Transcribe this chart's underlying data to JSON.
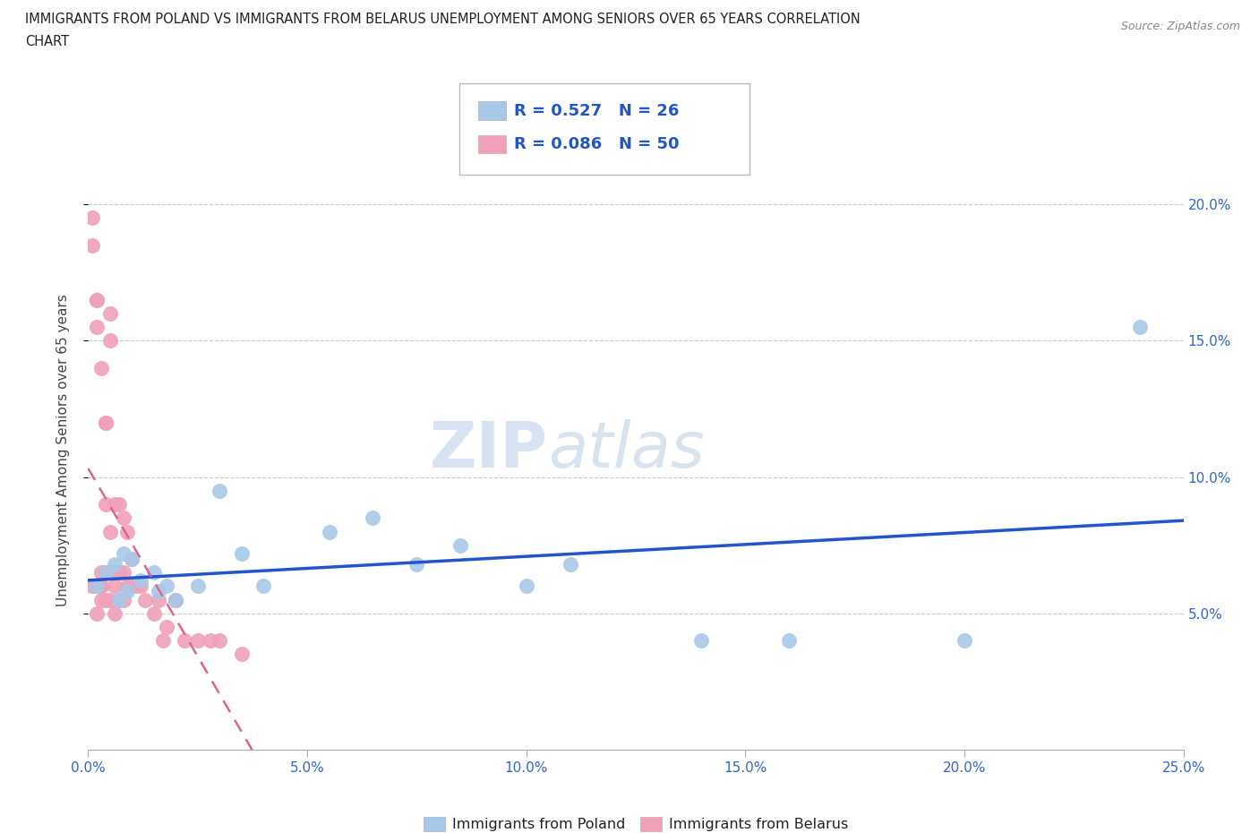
{
  "title_line1": "IMMIGRANTS FROM POLAND VS IMMIGRANTS FROM BELARUS UNEMPLOYMENT AMONG SENIORS OVER 65 YEARS CORRELATION",
  "title_line2": "CHART",
  "source": "Source: ZipAtlas.com",
  "ylabel": "Unemployment Among Seniors over 65 years",
  "xlim": [
    0.0,
    0.25
  ],
  "ylim": [
    0.0,
    0.22
  ],
  "xticks": [
    0.0,
    0.05,
    0.1,
    0.15,
    0.2,
    0.25
  ],
  "yticks": [
    0.05,
    0.1,
    0.15,
    0.2
  ],
  "ytick_labels": [
    "5.0%",
    "10.0%",
    "15.0%",
    "20.0%"
  ],
  "xtick_labels": [
    "0.0%",
    "5.0%",
    "10.0%",
    "15.0%",
    "20.0%",
    "25.0%"
  ],
  "poland_color": "#a8c8e8",
  "belarus_color": "#f0a0b8",
  "poland_line_color": "#2255cc",
  "belarus_line_color": "#dd6688",
  "poland_R": 0.527,
  "poland_N": 26,
  "belarus_R": 0.086,
  "belarus_N": 50,
  "watermark_ZIP": "ZIP",
  "watermark_atlas": "atlas",
  "background_color": "#ffffff",
  "poland_x": [
    0.002,
    0.004,
    0.006,
    0.007,
    0.008,
    0.009,
    0.01,
    0.012,
    0.015,
    0.016,
    0.018,
    0.02,
    0.025,
    0.03,
    0.035,
    0.04,
    0.055,
    0.065,
    0.075,
    0.085,
    0.1,
    0.11,
    0.14,
    0.16,
    0.2,
    0.24
  ],
  "poland_y": [
    0.06,
    0.065,
    0.068,
    0.055,
    0.072,
    0.058,
    0.07,
    0.062,
    0.065,
    0.058,
    0.06,
    0.055,
    0.06,
    0.095,
    0.072,
    0.06,
    0.08,
    0.085,
    0.068,
    0.075,
    0.06,
    0.068,
    0.04,
    0.04,
    0.04,
    0.155
  ],
  "belarus_x": [
    0.001,
    0.001,
    0.001,
    0.002,
    0.002,
    0.002,
    0.002,
    0.002,
    0.003,
    0.003,
    0.003,
    0.003,
    0.003,
    0.004,
    0.004,
    0.004,
    0.004,
    0.004,
    0.005,
    0.005,
    0.005,
    0.005,
    0.005,
    0.006,
    0.006,
    0.006,
    0.006,
    0.007,
    0.007,
    0.007,
    0.008,
    0.008,
    0.008,
    0.009,
    0.009,
    0.01,
    0.01,
    0.011,
    0.012,
    0.013,
    0.015,
    0.016,
    0.017,
    0.018,
    0.02,
    0.022,
    0.025,
    0.028,
    0.03,
    0.035
  ],
  "belarus_y": [
    0.185,
    0.195,
    0.06,
    0.155,
    0.165,
    0.165,
    0.06,
    0.05,
    0.14,
    0.065,
    0.06,
    0.06,
    0.055,
    0.12,
    0.12,
    0.09,
    0.065,
    0.055,
    0.15,
    0.16,
    0.08,
    0.065,
    0.055,
    0.09,
    0.065,
    0.06,
    0.05,
    0.09,
    0.065,
    0.055,
    0.085,
    0.065,
    0.055,
    0.08,
    0.06,
    0.07,
    0.06,
    0.06,
    0.06,
    0.055,
    0.05,
    0.055,
    0.04,
    0.045,
    0.055,
    0.04,
    0.04,
    0.04,
    0.04,
    0.035
  ]
}
